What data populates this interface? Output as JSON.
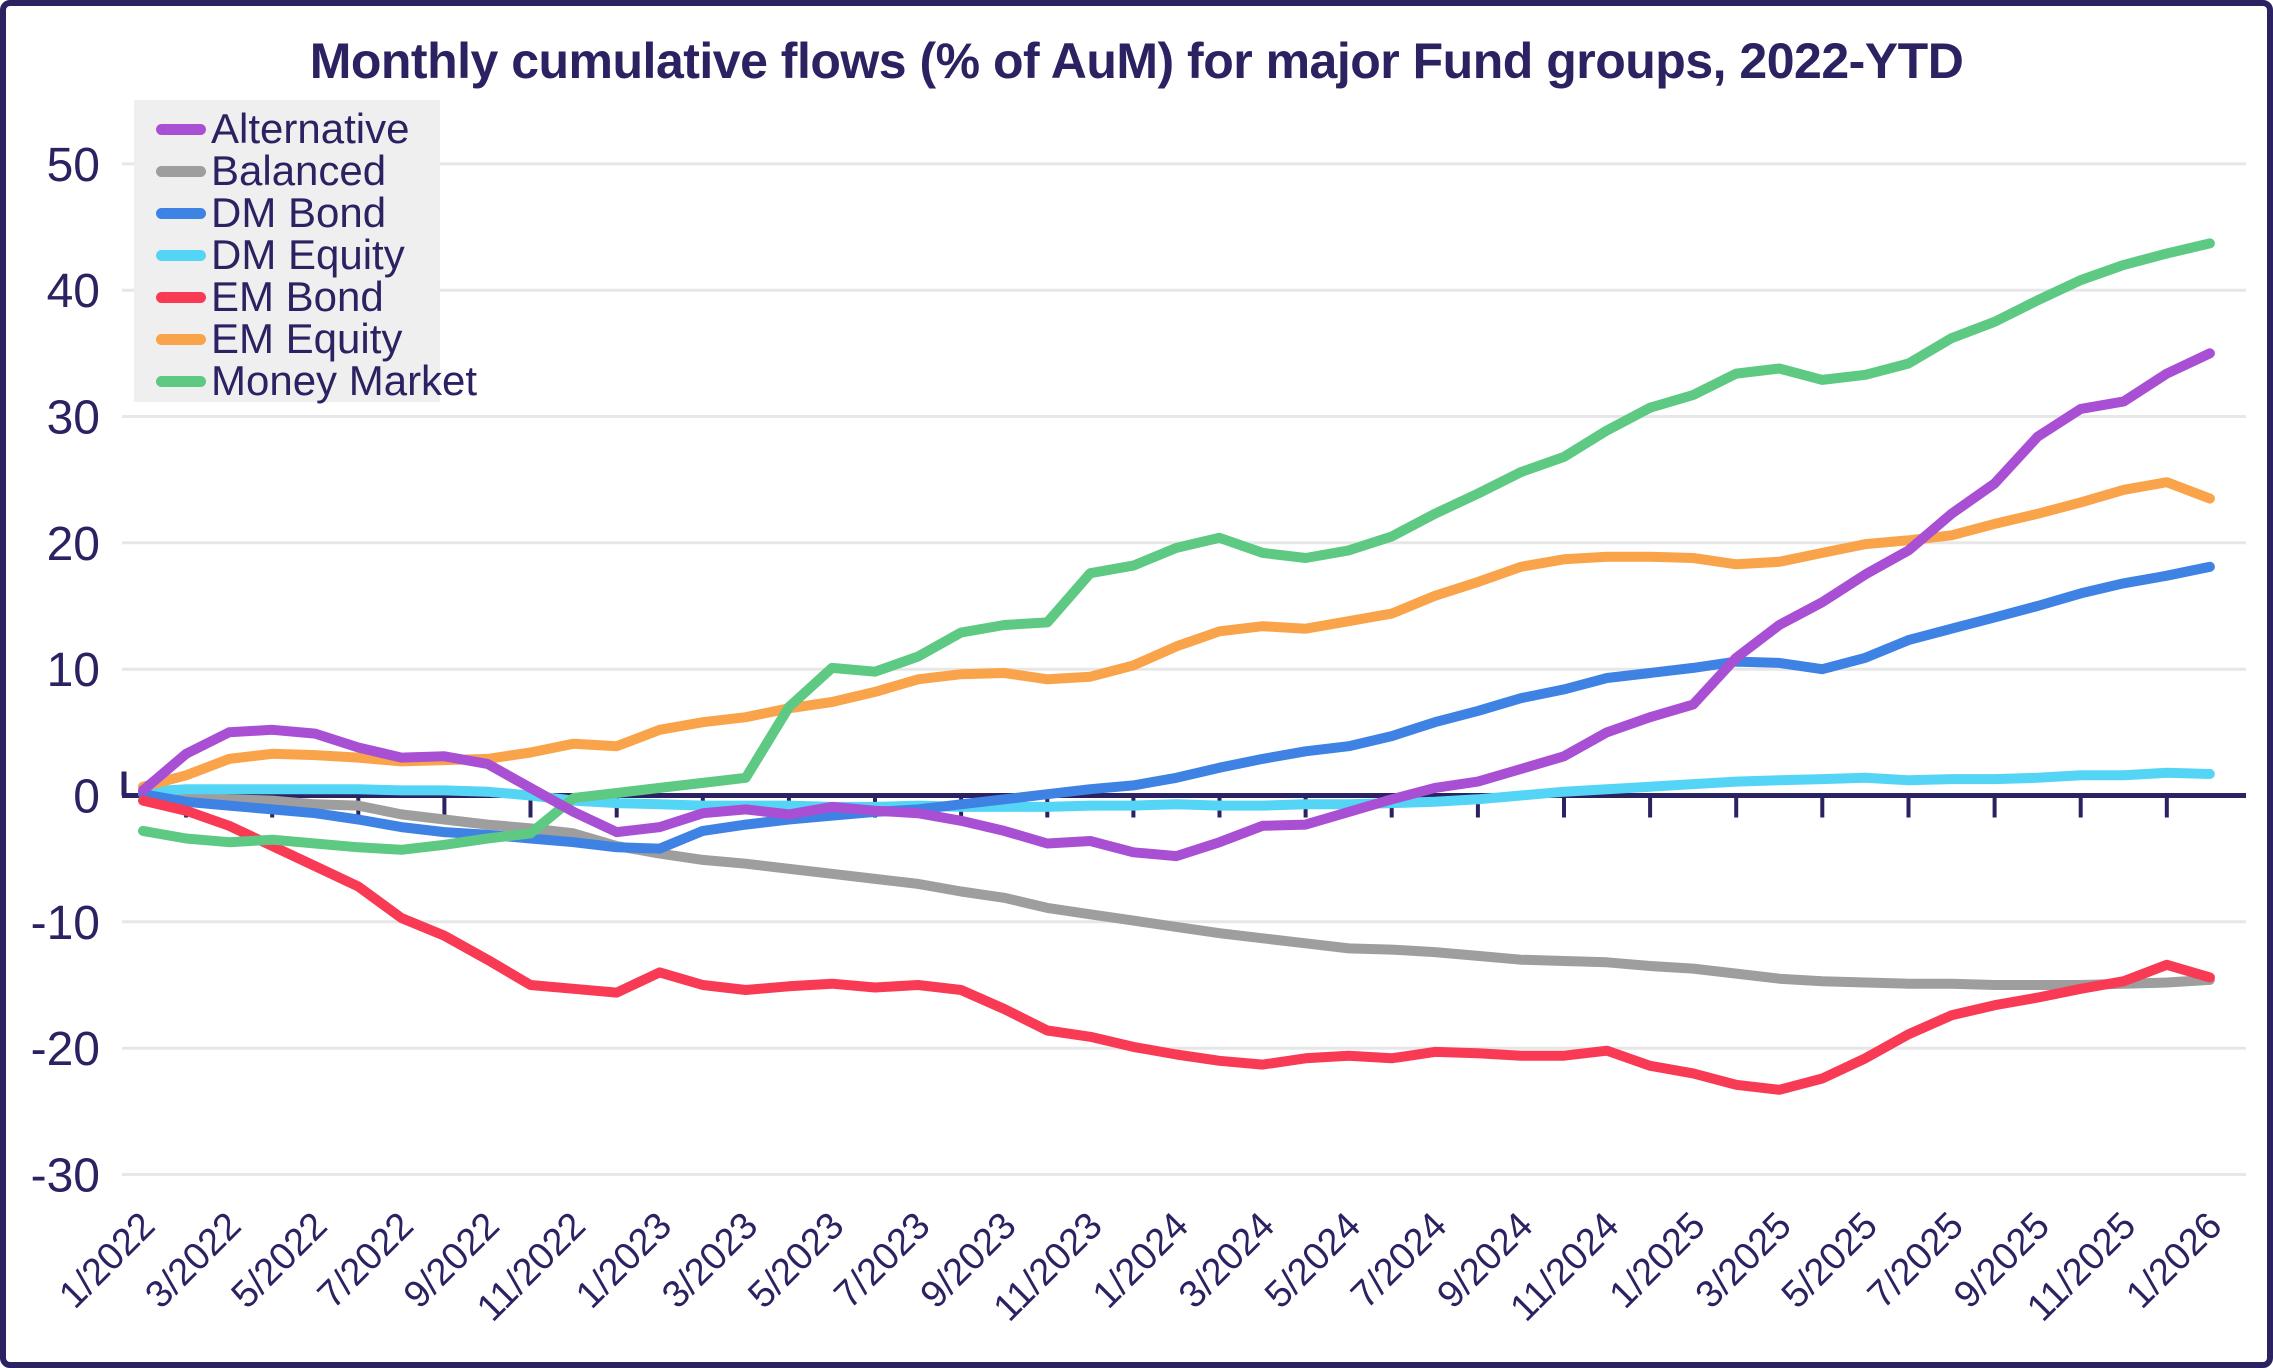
{
  "colors": {
    "navy": "#2b2262",
    "grid": "#e7e7e7",
    "legend_bg": "#f0eff0",
    "background": "#ffffff"
  },
  "chart_data": {
    "type": "line",
    "title": "Monthly cumulative flows (% of AuM) for major Fund groups, 2022-YTD",
    "xlabel": "",
    "ylabel": "",
    "ylim": [
      -30,
      50
    ],
    "yticks": [
      50,
      40,
      30,
      20,
      10,
      0,
      -10,
      -20,
      -30
    ],
    "grid": true,
    "legend_position": "upper-left",
    "x_label_every": 2,
    "x": [
      "1/2022",
      "2/2022",
      "3/2022",
      "4/2022",
      "5/2022",
      "6/2022",
      "7/2022",
      "8/2022",
      "9/2022",
      "10/2022",
      "11/2022",
      "12/2022",
      "1/2023",
      "2/2023",
      "3/2023",
      "4/2023",
      "5/2023",
      "6/2023",
      "7/2023",
      "8/2023",
      "9/2023",
      "10/2023",
      "11/2023",
      "12/2023",
      "1/2024",
      "2/2024",
      "3/2024",
      "4/2024",
      "5/2024",
      "6/2024",
      "7/2024",
      "8/2024",
      "9/2024",
      "10/2024",
      "11/2024",
      "12/2024",
      "1/2025",
      "2/2025",
      "3/2025",
      "4/2025",
      "5/2025",
      "6/2025",
      "7/2025",
      "8/2025",
      "9/2025",
      "10/2025",
      "11/2025",
      "12/2025",
      "1/2026"
    ],
    "series": [
      {
        "name": "Alternative",
        "color": "#a94fd3",
        "values": [
          0.4,
          3.3,
          5.0,
          5.2,
          4.9,
          3.8,
          3.0,
          3.1,
          2.5,
          0.6,
          -1.3,
          -2.9,
          -2.5,
          -1.4,
          -1.1,
          -1.5,
          -0.9,
          -1.2,
          -1.4,
          -2.0,
          -2.8,
          -3.8,
          -3.6,
          -4.5,
          -4.8,
          -3.7,
          -2.4,
          -2.3,
          -1.3,
          -0.3,
          0.6,
          1.1,
          2.1,
          3.1,
          5.0,
          6.2,
          7.2,
          10.9,
          13.5,
          15.3,
          17.5,
          19.4,
          22.3,
          24.7,
          28.4,
          30.6,
          31.2,
          33.4,
          35.0
        ]
      },
      {
        "name": "Balanced",
        "color": "#9e9e9e",
        "values": [
          0.2,
          0.0,
          -0.3,
          -0.4,
          -0.7,
          -0.8,
          -1.5,
          -1.9,
          -2.3,
          -2.6,
          -3.0,
          -4.0,
          -4.6,
          -5.1,
          -5.4,
          -5.8,
          -6.2,
          -6.6,
          -7.0,
          -7.6,
          -8.1,
          -8.9,
          -9.4,
          -9.9,
          -10.4,
          -10.9,
          -11.3,
          -11.7,
          -12.1,
          -12.2,
          -12.4,
          -12.7,
          -13.0,
          -13.1,
          -13.2,
          -13.5,
          -13.7,
          -14.1,
          -14.5,
          -14.7,
          -14.8,
          -14.9,
          -14.9,
          -15.0,
          -15.0,
          -15.0,
          -14.9,
          -14.8,
          -14.6
        ]
      },
      {
        "name": "DM Bond",
        "color": "#3e82e4",
        "values": [
          0.1,
          -0.5,
          -0.8,
          -1.1,
          -1.4,
          -1.9,
          -2.5,
          -2.9,
          -3.1,
          -3.4,
          -3.7,
          -4.1,
          -4.2,
          -2.8,
          -2.3,
          -1.9,
          -1.6,
          -1.3,
          -1.1,
          -0.7,
          -0.3,
          0.1,
          0.5,
          0.8,
          1.4,
          2.2,
          2.9,
          3.5,
          3.9,
          4.7,
          5.8,
          6.7,
          7.7,
          8.4,
          9.3,
          9.7,
          10.1,
          10.6,
          10.5,
          10.0,
          10.9,
          12.3,
          13.2,
          14.1,
          15.0,
          16.0,
          16.8,
          17.4,
          18.1
        ]
      },
      {
        "name": "DM Equity",
        "color": "#55d5f6",
        "values": [
          0.3,
          0.5,
          0.5,
          0.5,
          0.5,
          0.5,
          0.4,
          0.4,
          0.3,
          0.0,
          -0.4,
          -0.6,
          -0.7,
          -0.8,
          -0.8,
          -0.8,
          -0.9,
          -0.9,
          -0.8,
          -0.9,
          -0.9,
          -0.9,
          -0.8,
          -0.8,
          -0.7,
          -0.8,
          -0.8,
          -0.7,
          -0.7,
          -0.6,
          -0.5,
          -0.3,
          0.0,
          0.3,
          0.5,
          0.7,
          0.9,
          1.1,
          1.2,
          1.3,
          1.4,
          1.2,
          1.3,
          1.3,
          1.4,
          1.6,
          1.6,
          1.8,
          1.7
        ]
      },
      {
        "name": "EM Bond",
        "color": "#f93a54",
        "values": [
          -0.4,
          -1.2,
          -2.4,
          -4.0,
          -5.6,
          -7.2,
          -9.7,
          -11.1,
          -13.0,
          -15.0,
          -15.3,
          -15.6,
          -14.0,
          -15.0,
          -15.4,
          -15.1,
          -14.9,
          -15.2,
          -15.0,
          -15.4,
          -16.9,
          -18.6,
          -19.1,
          -19.9,
          -20.5,
          -21.0,
          -21.3,
          -20.8,
          -20.6,
          -20.8,
          -20.3,
          -20.4,
          -20.6,
          -20.6,
          -20.2,
          -21.4,
          -22.0,
          -22.9,
          -23.3,
          -22.4,
          -20.8,
          -18.9,
          -17.4,
          -16.6,
          -16.0,
          -15.3,
          -14.7,
          -13.4,
          -14.4
        ]
      },
      {
        "name": "EM Equity",
        "color": "#f9a44a",
        "values": [
          0.7,
          1.6,
          2.9,
          3.3,
          3.2,
          3.0,
          2.7,
          2.8,
          2.9,
          3.4,
          4.1,
          3.9,
          5.2,
          5.8,
          6.2,
          6.9,
          7.4,
          8.2,
          9.2,
          9.6,
          9.7,
          9.2,
          9.4,
          10.3,
          11.8,
          13.0,
          13.4,
          13.2,
          13.8,
          14.4,
          15.8,
          16.9,
          18.1,
          18.7,
          18.9,
          18.9,
          18.8,
          18.3,
          18.5,
          19.2,
          19.9,
          20.2,
          20.6,
          21.5,
          22.3,
          23.2,
          24.2,
          24.8,
          23.5
        ]
      },
      {
        "name": "Money Market",
        "color": "#5dc983",
        "values": [
          -2.8,
          -3.4,
          -3.7,
          -3.5,
          -3.8,
          -4.1,
          -4.3,
          -3.9,
          -3.4,
          -3.0,
          -0.2,
          0.2,
          0.6,
          1.0,
          1.4,
          7.0,
          10.1,
          9.8,
          11.0,
          12.9,
          13.5,
          13.7,
          17.6,
          18.2,
          19.6,
          20.4,
          19.2,
          18.8,
          19.4,
          20.5,
          22.3,
          23.9,
          25.6,
          26.8,
          28.9,
          30.7,
          31.7,
          33.4,
          33.8,
          32.9,
          33.3,
          34.2,
          36.2,
          37.5,
          39.2,
          40.8,
          42.0,
          42.9,
          43.7
        ]
      }
    ]
  }
}
